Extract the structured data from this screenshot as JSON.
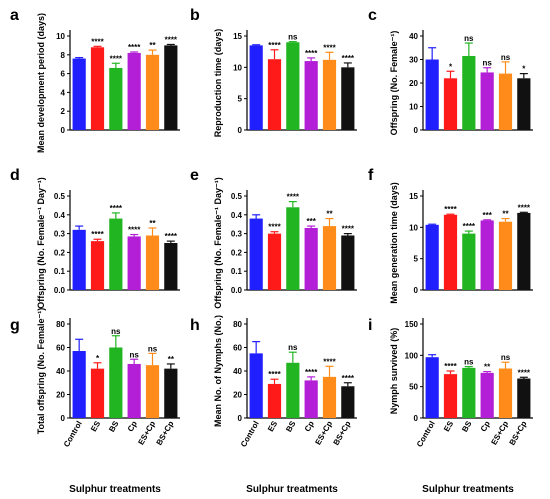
{
  "chart_data": [
    {
      "id": "a",
      "panel": "a",
      "type": "bar",
      "categories": [
        "Control",
        "ES",
        "BS",
        "Cp",
        "ES+Cp",
        "BS+Cp"
      ],
      "values": [
        7.6,
        8.8,
        6.6,
        8.2,
        8.0,
        9.0
      ],
      "errors": [
        0.1,
        0.1,
        0.5,
        0.1,
        0.5,
        0.1
      ],
      "significance": [
        "",
        "****",
        "****",
        "****",
        "**",
        "****"
      ],
      "ylabel": "Mean development period (days)",
      "ylim": [
        0,
        10
      ],
      "yticks": [
        0,
        2,
        4,
        6,
        8,
        10
      ],
      "colors": [
        "#1f1fff",
        "#ff1a1a",
        "#22b522",
        "#b31fd6",
        "#ff8c1a",
        "#111111"
      ]
    },
    {
      "id": "b",
      "panel": "b",
      "type": "bar",
      "categories": [
        "Control",
        "ES",
        "BS",
        "Cp",
        "ES+Cp",
        "BS+Cp"
      ],
      "values": [
        13.5,
        11.3,
        14.0,
        11.0,
        11.2,
        10.0
      ],
      "errors": [
        0.1,
        1.5,
        0.1,
        0.5,
        1.2,
        0.7
      ],
      "significance": [
        "",
        "****",
        "ns",
        "****",
        "****",
        "****"
      ],
      "ylabel": "Reproduction time (days)",
      "ylim": [
        0,
        15
      ],
      "yticks": [
        0,
        5,
        10,
        15
      ],
      "colors": [
        "#1f1fff",
        "#ff1a1a",
        "#22b522",
        "#b31fd6",
        "#ff8c1a",
        "#111111"
      ]
    },
    {
      "id": "c",
      "panel": "c",
      "type": "bar",
      "categories": [
        "Control",
        "ES",
        "BS",
        "Cp",
        "ES+Cp",
        "BS+Cp"
      ],
      "values": [
        30,
        22,
        31.5,
        24.5,
        24,
        22
      ],
      "errors": [
        5,
        3,
        5.5,
        2,
        5,
        2
      ],
      "significance": [
        "",
        "*",
        "ns",
        "ns",
        "ns",
        "*"
      ],
      "ylabel": "Offspring (No. Female⁻¹)",
      "ylim": [
        0,
        40
      ],
      "yticks": [
        0,
        10,
        20,
        30,
        40
      ],
      "colors": [
        "#1f1fff",
        "#ff1a1a",
        "#22b522",
        "#b31fd6",
        "#ff8c1a",
        "#111111"
      ]
    },
    {
      "id": "d",
      "panel": "d",
      "type": "bar",
      "categories": [
        "Control",
        "ES",
        "BS",
        "Cp",
        "ES+Cp",
        "BS+Cp"
      ],
      "values": [
        0.32,
        0.26,
        0.38,
        0.285,
        0.29,
        0.25
      ],
      "errors": [
        0.02,
        0.01,
        0.03,
        0.01,
        0.04,
        0.01
      ],
      "significance": [
        "",
        "****",
        "****",
        "****",
        "**",
        "****"
      ],
      "ylabel": "Offspring (No. Female⁻¹ Day⁻¹)",
      "ylim": [
        0,
        0.5
      ],
      "yticks": [
        0.0,
        0.1,
        0.2,
        0.3,
        0.4,
        0.5
      ],
      "colors": [
        "#1f1fff",
        "#ff1a1a",
        "#22b522",
        "#b31fd6",
        "#ff8c1a",
        "#111111"
      ]
    },
    {
      "id": "e",
      "panel": "e",
      "type": "bar",
      "categories": [
        "Control",
        "ES",
        "BS",
        "Cp",
        "ES+Cp",
        "BS+Cp"
      ],
      "values": [
        0.38,
        0.3,
        0.44,
        0.33,
        0.34,
        0.29
      ],
      "errors": [
        0.02,
        0.01,
        0.03,
        0.01,
        0.04,
        0.01
      ],
      "significance": [
        "",
        "****",
        "****",
        "***",
        "**",
        "****"
      ],
      "ylabel": "Offspring (No. Female⁻¹ Day⁻¹)",
      "ylim": [
        0,
        0.5
      ],
      "yticks": [
        0.0,
        0.1,
        0.2,
        0.3,
        0.4,
        0.5
      ],
      "colors": [
        "#1f1fff",
        "#ff1a1a",
        "#22b522",
        "#b31fd6",
        "#ff8c1a",
        "#111111"
      ]
    },
    {
      "id": "f",
      "panel": "f",
      "type": "bar",
      "categories": [
        "Control",
        "ES",
        "BS",
        "Cp",
        "ES+Cp",
        "BS+Cp"
      ],
      "values": [
        10.4,
        12.0,
        9.0,
        11.1,
        10.9,
        12.3
      ],
      "errors": [
        0.1,
        0.1,
        0.4,
        0.1,
        0.5,
        0.1
      ],
      "significance": [
        "",
        "****",
        "****",
        "***",
        "**",
        "****"
      ],
      "ylabel": "Mean generation time (days)",
      "ylim": [
        0,
        15
      ],
      "yticks": [
        0,
        5,
        10,
        15
      ],
      "colors": [
        "#1f1fff",
        "#ff1a1a",
        "#22b522",
        "#b31fd6",
        "#ff8c1a",
        "#111111"
      ]
    },
    {
      "id": "g",
      "panel": "g",
      "type": "bar",
      "categories": [
        "Control",
        "ES",
        "BS",
        "Cp",
        "ES+Cp",
        "BS+Cp"
      ],
      "values": [
        57,
        42,
        60,
        46,
        45,
        42
      ],
      "errors": [
        10,
        5,
        10,
        4,
        10,
        4
      ],
      "significance": [
        "",
        "*",
        "ns",
        "ns",
        "ns",
        "**"
      ],
      "ylabel": "Total offspring (No. Female⁻¹)",
      "ylim": [
        0,
        80
      ],
      "yticks": [
        0,
        20,
        40,
        60,
        80
      ],
      "colors": [
        "#1f1fff",
        "#ff1a1a",
        "#22b522",
        "#b31fd6",
        "#ff8c1a",
        "#111111"
      ]
    },
    {
      "id": "h",
      "panel": "h",
      "type": "bar",
      "categories": [
        "Control",
        "ES",
        "BS",
        "Cp",
        "ES+Cp",
        "BS+Cp"
      ],
      "values": [
        55,
        29,
        47,
        32,
        35,
        27
      ],
      "errors": [
        10,
        4,
        9,
        3,
        9,
        3
      ],
      "significance": [
        "",
        "****",
        "ns",
        "****",
        "****",
        "****"
      ],
      "ylabel": "Mean No. of Nymphs (No.)",
      "ylim": [
        0,
        80
      ],
      "yticks": [
        0,
        20,
        40,
        60,
        80
      ],
      "colors": [
        "#1f1fff",
        "#ff1a1a",
        "#22b522",
        "#b31fd6",
        "#ff8c1a",
        "#111111"
      ]
    },
    {
      "id": "i",
      "panel": "i",
      "type": "bar",
      "categories": [
        "Control",
        "ES",
        "BS",
        "Cp",
        "ES+Cp",
        "BS+Cp"
      ],
      "values": [
        97,
        70,
        80,
        72,
        79,
        63
      ],
      "errors": [
        4,
        5,
        2,
        2,
        10,
        2
      ],
      "significance": [
        "",
        "****",
        "ns",
        "**",
        "ns",
        "****"
      ],
      "ylabel": "Nymph survived (%)",
      "ylim": [
        0,
        150
      ],
      "yticks": [
        0,
        50,
        100,
        150
      ],
      "colors": [
        "#1f1fff",
        "#ff1a1a",
        "#22b522",
        "#b31fd6",
        "#ff8c1a",
        "#111111"
      ]
    }
  ],
  "x_title": "Sulphur treatments"
}
